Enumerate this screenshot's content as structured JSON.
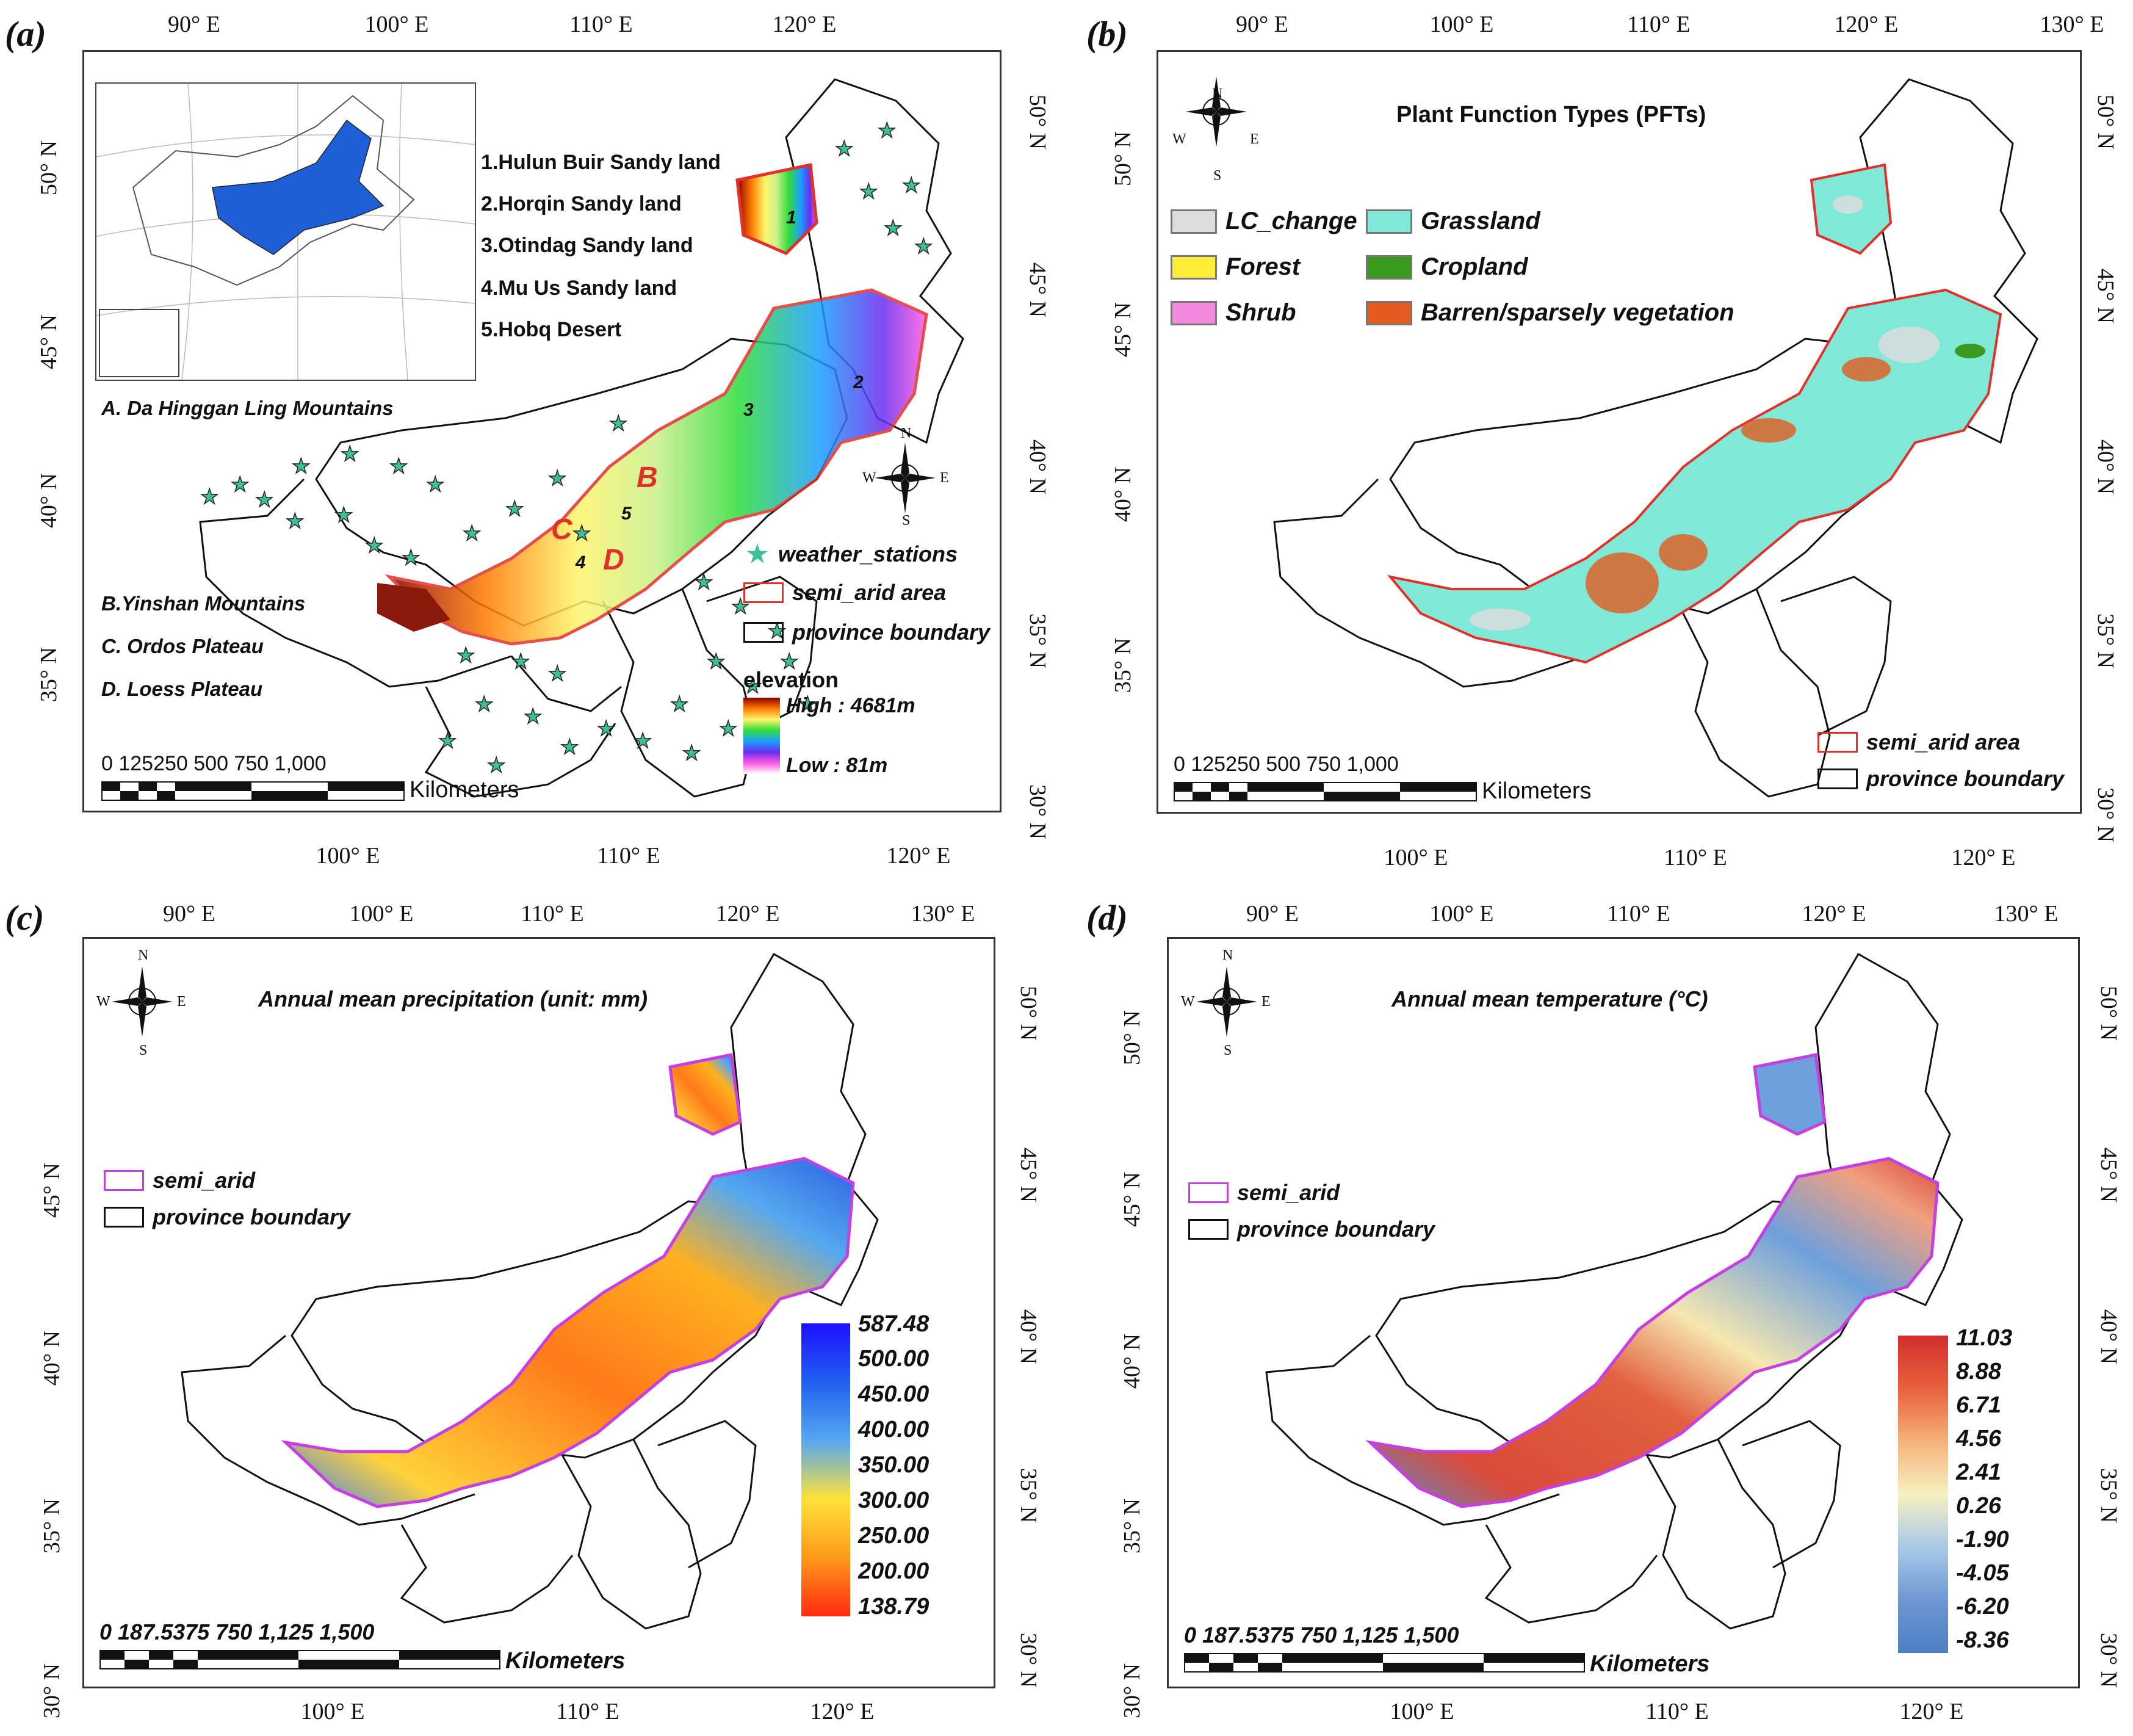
{
  "colors": {
    "frame": "#333333",
    "boundary": "#111111",
    "semi_arid_red": "#e0312a",
    "semi_arid_magenta": "#c440e0",
    "grassland": "#7fe8d6",
    "forest": "#ffef3a",
    "shrub": "#f28be0",
    "lc_change": "#dcdcdc",
    "cropland": "#3a9a1e",
    "barren": "#e35b1e",
    "station": "#3fbf9a",
    "inset_blue": "#1e5fd6"
  },
  "panels": {
    "a": {
      "letter": "(a)",
      "top_ticks": [
        "90° E",
        "100° E",
        "110° E",
        "120° E"
      ],
      "bottom_ticks": [
        "100° E",
        "110° E",
        "120° E"
      ],
      "left_ticks": [
        "50° N",
        "45° N",
        "40° N",
        "35° N"
      ],
      "right_ticks": [
        "50° N",
        "45° N",
        "40° N",
        "35° N",
        "30° N"
      ],
      "sandy_lands": [
        "1.Hulun Buir Sandy land",
        "2.Horqin Sandy land",
        "3.Otindag Sandy land",
        "4.Mu Us Sandy land",
        "5.Hobq Desert"
      ],
      "mountains": {
        "A": "A. Da Hinggan Ling Mountains",
        "B": "B.Yinshan Mountains",
        "C": "C. Ordos Plateau",
        "D": "D. Loess Plateau"
      },
      "map_numbers": [
        "1",
        "2",
        "3",
        "4",
        "5"
      ],
      "map_letters": [
        "B",
        "C",
        "D"
      ],
      "legend": {
        "stations": "weather_stations",
        "semi_arid": "semi_arid area",
        "province": "province boundary",
        "elevation_title": "elevation",
        "high": "High : 4681m",
        "low": "Low : 81m"
      },
      "scale": {
        "numbers": "0  125250      500       750     1,000",
        "unit": "Kilometers"
      },
      "compass": {
        "n": "N",
        "s": "S",
        "e": "E",
        "w": "W"
      }
    },
    "b": {
      "letter": "(b)",
      "title": "Plant Function Types (PFTs)",
      "top_ticks": [
        "90° E",
        "100° E",
        "110° E",
        "120° E",
        "130° E"
      ],
      "bottom_ticks": [
        "100° E",
        "110° E",
        "120° E"
      ],
      "left_ticks": [
        "50° N",
        "45° N",
        "40° N",
        "35° N"
      ],
      "right_ticks": [
        "50° N",
        "45° N",
        "40° N",
        "35° N",
        "30° N"
      ],
      "pft_legend": [
        "LC_change",
        "Grassland",
        "Forest",
        "Cropland",
        "Shrub",
        "Barren/sparsely vegetation"
      ],
      "legend": {
        "semi_arid": "semi_arid area",
        "province": "province boundary"
      },
      "scale": {
        "numbers": "0  125250      500       750     1,000",
        "unit": "Kilometers"
      },
      "compass": {
        "n": "N",
        "s": "S",
        "e": "E",
        "w": "W"
      }
    },
    "c": {
      "letter": "(c)",
      "title": "Annual mean precipitation  (unit: mm)",
      "top_ticks": [
        "90° E",
        "100° E",
        "110° E",
        "120° E",
        "130° E"
      ],
      "bottom_ticks": [
        "100° E",
        "110° E",
        "120° E"
      ],
      "left_ticks": [
        "45° N",
        "40° N",
        "35° N",
        "30° N"
      ],
      "right_ticks": [
        "50° N",
        "45° N",
        "40° N",
        "35° N",
        "30° N"
      ],
      "legend": {
        "semi_arid": "semi_arid",
        "province": "province boundary"
      },
      "colorbar": [
        "587.48",
        "500.00",
        "450.00",
        "400.00",
        "350.00",
        "300.00",
        "250.00",
        "200.00",
        "138.79"
      ],
      "scale": {
        "numbers": "0  187.5375         750       1,125      1,500",
        "unit": "Kilometers"
      },
      "compass": {
        "n": "N",
        "s": "S",
        "e": "E",
        "w": "W"
      }
    },
    "d": {
      "letter": "(d)",
      "title": "Annual mean temperature (°C)",
      "top_ticks": [
        "90° E",
        "100° E",
        "110° E",
        "120° E",
        "130° E"
      ],
      "bottom_ticks": [
        "100° E",
        "110° E",
        "120° E"
      ],
      "left_ticks": [
        "50° N",
        "45° N",
        "40° N",
        "35° N",
        "30° N"
      ],
      "right_ticks": [
        "50° N",
        "45° N",
        "40° N",
        "35° N",
        "30° N"
      ],
      "legend": {
        "semi_arid": "semi_arid",
        "province": "province boundary"
      },
      "colorbar": [
        "11.03",
        "8.88",
        "6.71",
        "4.56",
        "2.41",
        "0.26",
        "-1.90",
        "-4.05",
        "-6.20",
        "-8.36"
      ],
      "scale": {
        "numbers": "0  187.5375         750       1,125      1,500",
        "unit": "Kilometers"
      },
      "compass": {
        "n": "N",
        "s": "S",
        "e": "E",
        "w": "W"
      }
    }
  }
}
